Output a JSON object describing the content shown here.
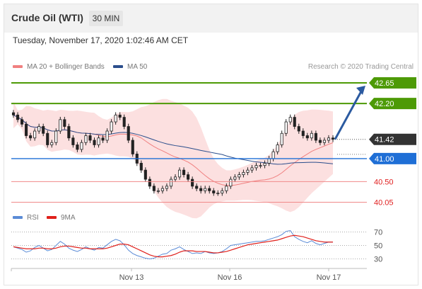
{
  "header": {
    "title": "Crude Oil (WTI)",
    "timeframe": "30 MIN"
  },
  "datetime": "Tuesday, November 17, 2020 1:02:46 AM CET",
  "legend": {
    "bollinger": {
      "label": "MA 20 + Bollinger Bands",
      "color": "#f08080"
    },
    "ma50": {
      "label": "MA 50",
      "color": "#2b4e8c"
    },
    "research": "Research © 2020 Trading Central"
  },
  "rsi_legend": {
    "rsi": {
      "label": "RSI",
      "color": "#5b8bd6"
    },
    "ma9": {
      "label": "9MA",
      "color": "#e0201b"
    }
  },
  "chart_data": {
    "type": "candlestick",
    "price_ylim": [
      39.95,
      42.85
    ],
    "x_ticks": [
      "Nov 13",
      "Nov 16",
      "Nov 17"
    ],
    "levels": [
      {
        "value": 42.65,
        "label": "42.65",
        "kind": "resistance",
        "color": "#4d9a06"
      },
      {
        "value": 42.2,
        "label": "42.20",
        "kind": "resistance",
        "color": "#4d9a06"
      },
      {
        "value": 41.42,
        "label": "41.42",
        "kind": "last",
        "color": "#333333"
      },
      {
        "value": 41.0,
        "label": "41.00",
        "kind": "pivot",
        "color": "#1f6fd6"
      },
      {
        "value": 40.5,
        "label": "40.50",
        "kind": "support",
        "color": "#e02020"
      },
      {
        "value": 40.05,
        "label": "40.05",
        "kind": "support",
        "color": "#e02020"
      }
    ],
    "close_series": [
      41.95,
      41.85,
      41.75,
      41.5,
      41.45,
      41.6,
      41.7,
      41.55,
      41.3,
      41.35,
      41.6,
      41.85,
      41.7,
      41.45,
      41.3,
      41.2,
      41.35,
      41.5,
      41.4,
      41.3,
      41.45,
      41.4,
      41.6,
      41.8,
      41.95,
      41.9,
      41.7,
      41.4,
      41.1,
      40.9,
      40.75,
      40.55,
      40.4,
      40.3,
      40.3,
      40.35,
      40.4,
      40.55,
      40.6,
      40.75,
      40.65,
      40.55,
      40.4,
      40.35,
      40.3,
      40.35,
      40.3,
      40.25,
      40.25,
      40.3,
      40.4,
      40.55,
      40.6,
      40.65,
      40.7,
      40.75,
      40.8,
      40.85,
      40.85,
      40.9,
      41.0,
      41.15,
      41.3,
      41.55,
      41.8,
      41.9,
      41.7,
      41.6,
      41.5,
      41.45,
      41.55,
      41.4,
      41.35,
      41.4,
      41.45,
      41.42
    ],
    "rsi": {
      "ylim": [
        20,
        80
      ],
      "ticks": [
        70,
        50,
        30
      ],
      "values": [
        48,
        46,
        44,
        40,
        42,
        47,
        50,
        46,
        42,
        44,
        50,
        56,
        52,
        46,
        43,
        41,
        44,
        48,
        45,
        43,
        47,
        46,
        51,
        56,
        59,
        57,
        51,
        43,
        38,
        35,
        33,
        31,
        30,
        31,
        34,
        37,
        38,
        43,
        45,
        48,
        44,
        41,
        38,
        39,
        38,
        41,
        39,
        38,
        39,
        41,
        45,
        50,
        51,
        52,
        53,
        54,
        55,
        56,
        56,
        57,
        59,
        61,
        63,
        66,
        71,
        72,
        63,
        59,
        56,
        54,
        57,
        53,
        51,
        53,
        55,
        55
      ],
      "ma9": [
        48,
        47,
        46,
        45,
        45,
        45,
        46,
        46,
        45,
        45,
        46,
        48,
        49,
        49,
        48,
        47,
        46,
        46,
        45,
        45,
        45,
        45,
        46,
        48,
        50,
        52,
        52,
        51,
        48,
        45,
        42,
        39,
        36,
        34,
        33,
        33,
        34,
        35,
        37,
        40,
        42,
        42,
        42,
        41,
        41,
        41,
        40,
        39,
        39,
        40,
        41,
        43,
        45,
        47,
        49,
        51,
        52,
        53,
        54,
        55,
        56,
        57,
        58,
        60,
        62,
        64,
        65,
        64,
        63,
        61,
        59,
        57,
        56,
        55,
        55,
        55
      ]
    }
  }
}
